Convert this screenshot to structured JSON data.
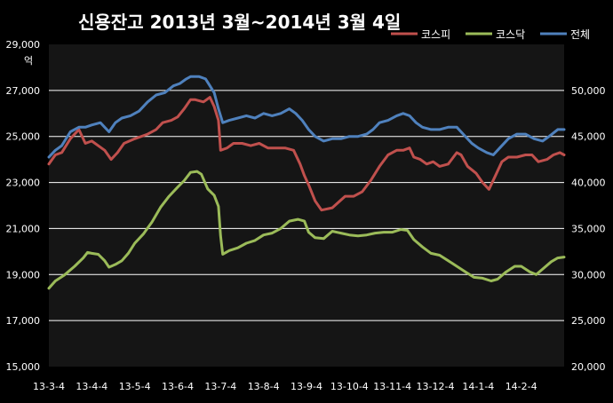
{
  "chart_data": {
    "type": "line",
    "title": "신용잔고 2013년 3월~2014년 3월 4일",
    "ylabel_unit": "억",
    "left_axis": {
      "ylim": [
        15000,
        29000
      ],
      "ticks": [
        "15,000",
        "17,000",
        "19,000",
        "21,000",
        "23,000",
        "25,000",
        "27,000",
        "29,000"
      ]
    },
    "right_axis": {
      "ylim": [
        20000,
        55000
      ],
      "ticks": [
        "20,000",
        "25,000",
        "30,000",
        "35,000",
        "40,000",
        "45,000",
        "50,000"
      ]
    },
    "x_tick_labels": [
      "13-3-4",
      "13-4-4",
      "13-5-4",
      "13-6-4",
      "13-7-4",
      "13-8-4",
      "13-9-4",
      "13-10-4",
      "13-11-4",
      "13-12-4",
      "14-1-4",
      "14-2-4"
    ],
    "x_range": [
      0,
      12
    ],
    "grid": true,
    "legend_position": "top-right",
    "colors": {
      "background": "#000000",
      "plot_area": "#151515",
      "axis_text": "#ffffff",
      "grid": "#ffffff"
    },
    "series": [
      {
        "name": "코스피",
        "axis": "left",
        "color": "#c0504d",
        "points": [
          [
            0,
            23800
          ],
          [
            0.15,
            24200
          ],
          [
            0.3,
            24300
          ],
          [
            0.5,
            24900
          ],
          [
            0.7,
            25300
          ],
          [
            0.85,
            24700
          ],
          [
            1.0,
            24800
          ],
          [
            1.3,
            24400
          ],
          [
            1.45,
            24000
          ],
          [
            1.6,
            24300
          ],
          [
            1.75,
            24700
          ],
          [
            2.0,
            24900
          ],
          [
            2.3,
            25100
          ],
          [
            2.5,
            25300
          ],
          [
            2.65,
            25600
          ],
          [
            2.85,
            25700
          ],
          [
            3.0,
            25850
          ],
          [
            3.15,
            26200
          ],
          [
            3.3,
            26600
          ],
          [
            3.4,
            26600
          ],
          [
            3.6,
            26500
          ],
          [
            3.75,
            26700
          ],
          [
            3.85,
            26300
          ],
          [
            3.95,
            25700
          ],
          [
            4.0,
            24400
          ],
          [
            4.15,
            24500
          ],
          [
            4.3,
            24700
          ],
          [
            4.5,
            24700
          ],
          [
            4.7,
            24600
          ],
          [
            4.9,
            24700
          ],
          [
            5.1,
            24500
          ],
          [
            5.3,
            24500
          ],
          [
            5.5,
            24500
          ],
          [
            5.7,
            24400
          ],
          [
            5.85,
            23800
          ],
          [
            5.95,
            23300
          ],
          [
            6.05,
            22900
          ],
          [
            6.2,
            22200
          ],
          [
            6.35,
            21800
          ],
          [
            6.6,
            21900
          ],
          [
            6.9,
            22400
          ],
          [
            7.1,
            22400
          ],
          [
            7.3,
            22600
          ],
          [
            7.5,
            23100
          ],
          [
            7.7,
            23700
          ],
          [
            7.9,
            24200
          ],
          [
            8.1,
            24400
          ],
          [
            8.25,
            24400
          ],
          [
            8.4,
            24500
          ],
          [
            8.5,
            24100
          ],
          [
            8.65,
            24000
          ],
          [
            8.8,
            23800
          ],
          [
            8.95,
            23900
          ],
          [
            9.1,
            23700
          ],
          [
            9.3,
            23800
          ],
          [
            9.5,
            24300
          ],
          [
            9.6,
            24200
          ],
          [
            9.75,
            23700
          ],
          [
            9.95,
            23400
          ],
          [
            10.1,
            23000
          ],
          [
            10.25,
            22700
          ],
          [
            10.4,
            23300
          ],
          [
            10.55,
            23900
          ],
          [
            10.7,
            24100
          ],
          [
            10.9,
            24100
          ],
          [
            11.1,
            24200
          ],
          [
            11.25,
            24200
          ],
          [
            11.4,
            23900
          ],
          [
            11.6,
            24000
          ],
          [
            11.75,
            24200
          ],
          [
            11.9,
            24300
          ],
          [
            12.0,
            24200
          ]
        ]
      },
      {
        "name": "코스닥",
        "axis": "right",
        "color": "#9bbb59",
        "points": [
          [
            0,
            28500
          ],
          [
            0.15,
            29300
          ],
          [
            0.35,
            29900
          ],
          [
            0.6,
            30900
          ],
          [
            0.8,
            31800
          ],
          [
            0.9,
            32400
          ],
          [
            1.0,
            32300
          ],
          [
            1.15,
            32200
          ],
          [
            1.3,
            31500
          ],
          [
            1.4,
            30800
          ],
          [
            1.55,
            31100
          ],
          [
            1.7,
            31500
          ],
          [
            1.85,
            32300
          ],
          [
            2.0,
            33400
          ],
          [
            2.2,
            34400
          ],
          [
            2.4,
            35700
          ],
          [
            2.6,
            37300
          ],
          [
            2.8,
            38500
          ],
          [
            3.0,
            39500
          ],
          [
            3.15,
            40200
          ],
          [
            3.3,
            41100
          ],
          [
            3.45,
            41200
          ],
          [
            3.55,
            40900
          ],
          [
            3.7,
            39300
          ],
          [
            3.85,
            38600
          ],
          [
            3.95,
            37400
          ],
          [
            4.0,
            34200
          ],
          [
            4.05,
            32200
          ],
          [
            4.2,
            32600
          ],
          [
            4.4,
            32900
          ],
          [
            4.6,
            33400
          ],
          [
            4.8,
            33700
          ],
          [
            5.0,
            34300
          ],
          [
            5.2,
            34500
          ],
          [
            5.4,
            35000
          ],
          [
            5.6,
            35800
          ],
          [
            5.8,
            36000
          ],
          [
            5.95,
            35800
          ],
          [
            6.05,
            34600
          ],
          [
            6.2,
            34000
          ],
          [
            6.4,
            33900
          ],
          [
            6.6,
            34700
          ],
          [
            6.8,
            34500
          ],
          [
            7.0,
            34300
          ],
          [
            7.2,
            34200
          ],
          [
            7.4,
            34300
          ],
          [
            7.6,
            34500
          ],
          [
            7.8,
            34600
          ],
          [
            8.0,
            34600
          ],
          [
            8.2,
            34900
          ],
          [
            8.35,
            34800
          ],
          [
            8.5,
            33800
          ],
          [
            8.7,
            33000
          ],
          [
            8.9,
            32300
          ],
          [
            9.1,
            32100
          ],
          [
            9.3,
            31500
          ],
          [
            9.5,
            30900
          ],
          [
            9.7,
            30300
          ],
          [
            9.9,
            29700
          ],
          [
            10.1,
            29600
          ],
          [
            10.3,
            29300
          ],
          [
            10.45,
            29500
          ],
          [
            10.65,
            30300
          ],
          [
            10.85,
            30900
          ],
          [
            11.0,
            30900
          ],
          [
            11.2,
            30300
          ],
          [
            11.35,
            30000
          ],
          [
            11.5,
            30600
          ],
          [
            11.7,
            31400
          ],
          [
            11.85,
            31800
          ],
          [
            12.0,
            31900
          ]
        ]
      },
      {
        "name": "전체",
        "axis": "left",
        "color": "#4f81bd",
        "points": [
          [
            0,
            24100
          ],
          [
            0.15,
            24400
          ],
          [
            0.3,
            24600
          ],
          [
            0.5,
            25200
          ],
          [
            0.7,
            25400
          ],
          [
            0.85,
            25400
          ],
          [
            1.0,
            25500
          ],
          [
            1.2,
            25600
          ],
          [
            1.4,
            25200
          ],
          [
            1.55,
            25600
          ],
          [
            1.7,
            25800
          ],
          [
            1.9,
            25900
          ],
          [
            2.1,
            26100
          ],
          [
            2.3,
            26500
          ],
          [
            2.5,
            26800
          ],
          [
            2.7,
            26900
          ],
          [
            2.9,
            27200
          ],
          [
            3.05,
            27300
          ],
          [
            3.2,
            27500
          ],
          [
            3.3,
            27600
          ],
          [
            3.5,
            27600
          ],
          [
            3.65,
            27500
          ],
          [
            3.75,
            27200
          ],
          [
            3.85,
            26900
          ],
          [
            3.95,
            26200
          ],
          [
            4.05,
            25600
          ],
          [
            4.2,
            25700
          ],
          [
            4.4,
            25800
          ],
          [
            4.6,
            25900
          ],
          [
            4.8,
            25800
          ],
          [
            5.0,
            26000
          ],
          [
            5.2,
            25900
          ],
          [
            5.4,
            26000
          ],
          [
            5.6,
            26200
          ],
          [
            5.75,
            26000
          ],
          [
            5.9,
            25700
          ],
          [
            6.05,
            25300
          ],
          [
            6.2,
            25000
          ],
          [
            6.4,
            24800
          ],
          [
            6.6,
            24900
          ],
          [
            6.8,
            24900
          ],
          [
            7.0,
            25000
          ],
          [
            7.2,
            25000
          ],
          [
            7.4,
            25100
          ],
          [
            7.55,
            25300
          ],
          [
            7.7,
            25600
          ],
          [
            7.9,
            25700
          ],
          [
            8.1,
            25900
          ],
          [
            8.25,
            26000
          ],
          [
            8.4,
            25900
          ],
          [
            8.55,
            25600
          ],
          [
            8.7,
            25400
          ],
          [
            8.9,
            25300
          ],
          [
            9.1,
            25300
          ],
          [
            9.3,
            25400
          ],
          [
            9.5,
            25400
          ],
          [
            9.65,
            25100
          ],
          [
            9.85,
            24700
          ],
          [
            10.0,
            24500
          ],
          [
            10.2,
            24300
          ],
          [
            10.35,
            24200
          ],
          [
            10.5,
            24500
          ],
          [
            10.7,
            24900
          ],
          [
            10.9,
            25100
          ],
          [
            11.1,
            25100
          ],
          [
            11.3,
            24900
          ],
          [
            11.5,
            24800
          ],
          [
            11.65,
            25000
          ],
          [
            11.85,
            25300
          ],
          [
            12.0,
            25300
          ]
        ]
      }
    ]
  }
}
